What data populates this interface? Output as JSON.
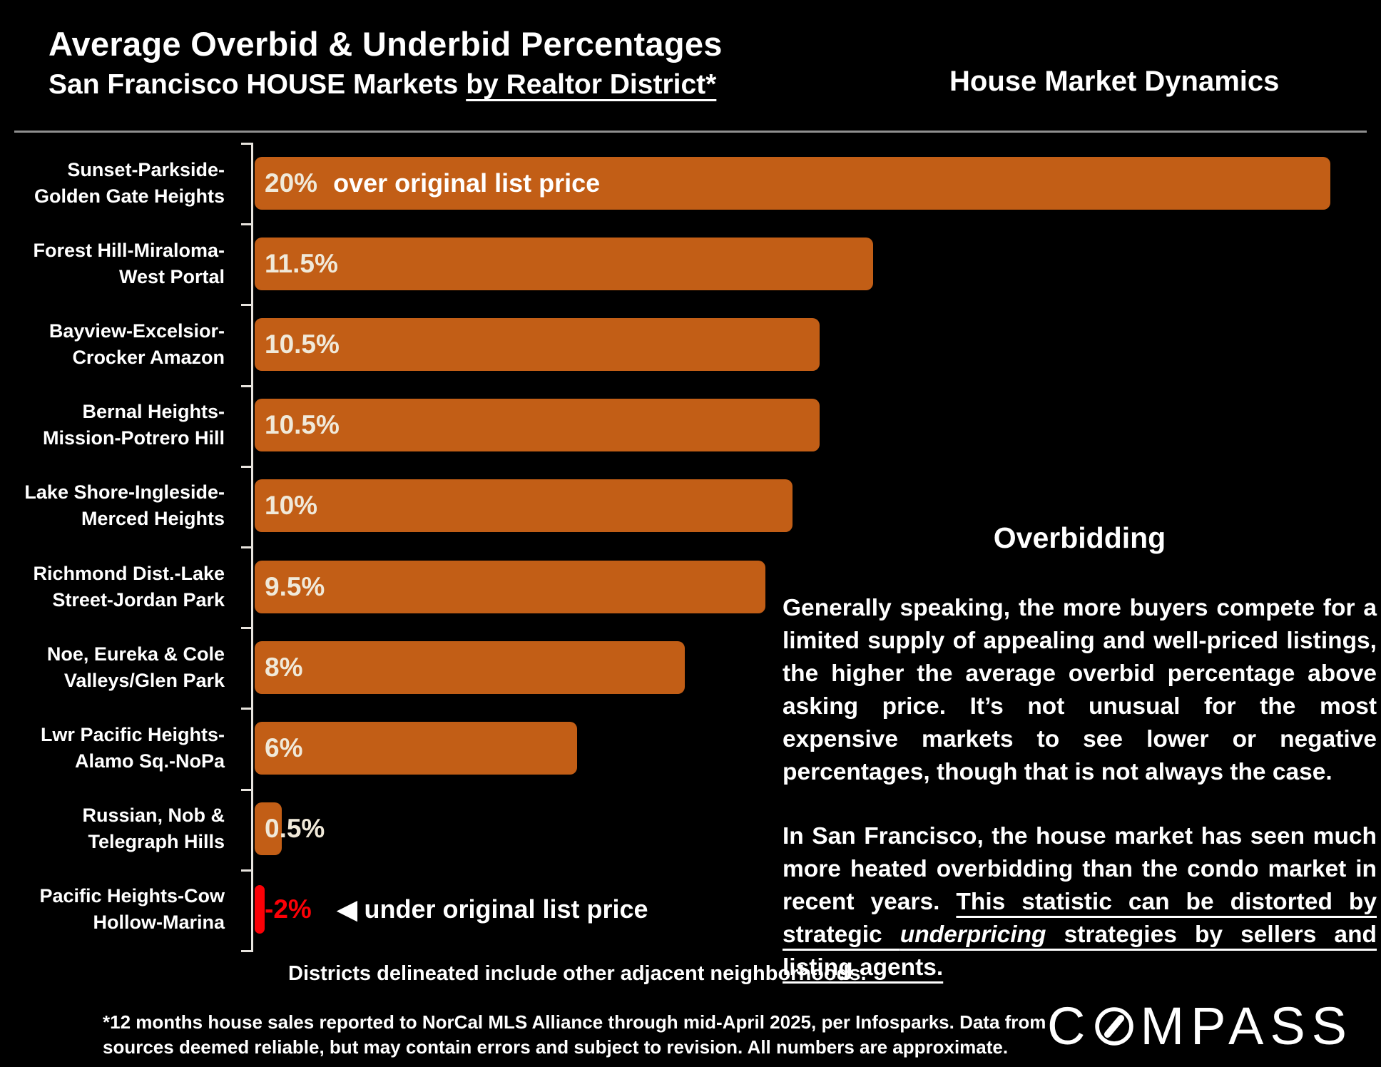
{
  "header": {
    "title": "Average Overbid & Underbid Percentages",
    "subtitle_plain": "San Francisco HOUSE Markets ",
    "subtitle_underlined": "by Realtor District*",
    "tagline": "House Market Dynamics"
  },
  "chart_data": {
    "type": "bar",
    "orientation": "horizontal",
    "title": "Average Overbid & Underbid Percentages — San Francisco HOUSE Markets by Realtor District",
    "unit": "%",
    "axis_min": 0,
    "axis_max": 20,
    "grid": "off",
    "legend": "none",
    "bar_color": "#C25E16",
    "negative_color": "#FB0006",
    "value_label_color": "#F0E9D9",
    "axis_color": "#E8E4DE",
    "categories": [
      "Sunset-Parkside-Golden Gate Heights",
      "Forest Hill-Miraloma-West Portal",
      "Bayview-Excelsior-Crocker Amazon",
      "Bernal Heights-Mission-Potrero Hill",
      "Lake Shore-Ingleside-Merced Heights",
      "Richmond Dist.-Lake Street-Jordan Park",
      "Noe, Eureka & Cole Valleys/Glen Park",
      "Lwr Pacific Heights-Alamo Sq.-NoPa",
      "Russian, Nob & Telegraph Hills",
      "Pacific Heights-Cow Hollow-Marina"
    ],
    "values": [
      20,
      11.5,
      10.5,
      10.5,
      10,
      9.5,
      8,
      6,
      0.5,
      -2
    ],
    "rows": [
      {
        "category_lines": [
          "Sunset-Parkside-",
          "Golden Gate Heights"
        ],
        "value": 20,
        "label": "20%",
        "annotation": "over original list price",
        "annotation_style": "plain"
      },
      {
        "category_lines": [
          "Forest Hill-Miraloma-",
          "West Portal"
        ],
        "value": 11.5,
        "label": "11.5%",
        "annotation": "",
        "annotation_style": ""
      },
      {
        "category_lines": [
          "Bayview-Excelsior-",
          "Crocker Amazon"
        ],
        "value": 10.5,
        "label": "10.5%",
        "annotation": "",
        "annotation_style": ""
      },
      {
        "category_lines": [
          "Bernal Heights-",
          "Mission-Potrero Hill"
        ],
        "value": 10.5,
        "label": "10.5%",
        "annotation": "",
        "annotation_style": ""
      },
      {
        "category_lines": [
          "Lake Shore-Ingleside-",
          "Merced Heights"
        ],
        "value": 10,
        "label": "10%",
        "annotation": "",
        "annotation_style": ""
      },
      {
        "category_lines": [
          "Richmond Dist.-Lake",
          "Street-Jordan Park"
        ],
        "value": 9.5,
        "label": "9.5%",
        "annotation": "",
        "annotation_style": ""
      },
      {
        "category_lines": [
          "Noe, Eureka & Cole",
          "Valleys/Glen Park"
        ],
        "value": 8,
        "label": "8%",
        "annotation": "",
        "annotation_style": ""
      },
      {
        "category_lines": [
          "Lwr Pacific Heights-",
          "Alamo Sq.-NoPa"
        ],
        "value": 6,
        "label": "6%",
        "annotation": "",
        "annotation_style": ""
      },
      {
        "category_lines": [
          "Russian, Nob &",
          "Telegraph Hills"
        ],
        "value": 0.5,
        "label": "0.5%",
        "annotation": "",
        "annotation_style": ""
      },
      {
        "category_lines": [
          "Pacific Heights-Cow",
          "Hollow-Marina"
        ],
        "value": -2,
        "label": "-2%",
        "annotation": "◀ under original list price",
        "annotation_style": "arrow"
      }
    ]
  },
  "sidebar": {
    "heading": "Overbidding",
    "para1": "Generally speaking, the more buyers compete for a limited supply of appealing and well-priced listings, the higher the average overbid percentage above asking price. It’s not unusual for the most expensive markets to see lower or negative percentages, though that is not always the case.",
    "para2_segments": [
      {
        "text": "In San Francisco, the house market has seen much more heated overbidding than the condo market in recent years. ",
        "underline": false,
        "italic": false
      },
      {
        "text": "This statistic can be distorted by strategic ",
        "underline": true,
        "italic": false
      },
      {
        "text": "underpricing",
        "underline": true,
        "italic": true
      },
      {
        "text": " strategies by sellers and listing agents.",
        "underline": true,
        "italic": false
      }
    ]
  },
  "footer": {
    "note": "Districts delineated include other adjacent neighborhoods.",
    "disclaimer": "*12 months house sales reported to NorCal MLS Alliance through mid-April 2025, per Infosparks. Data from sources deemed reliable, but may contain errors and subject to revision. All numbers are approximate.",
    "logo_text_start": "C",
    "logo_text_end": "MPASS"
  }
}
